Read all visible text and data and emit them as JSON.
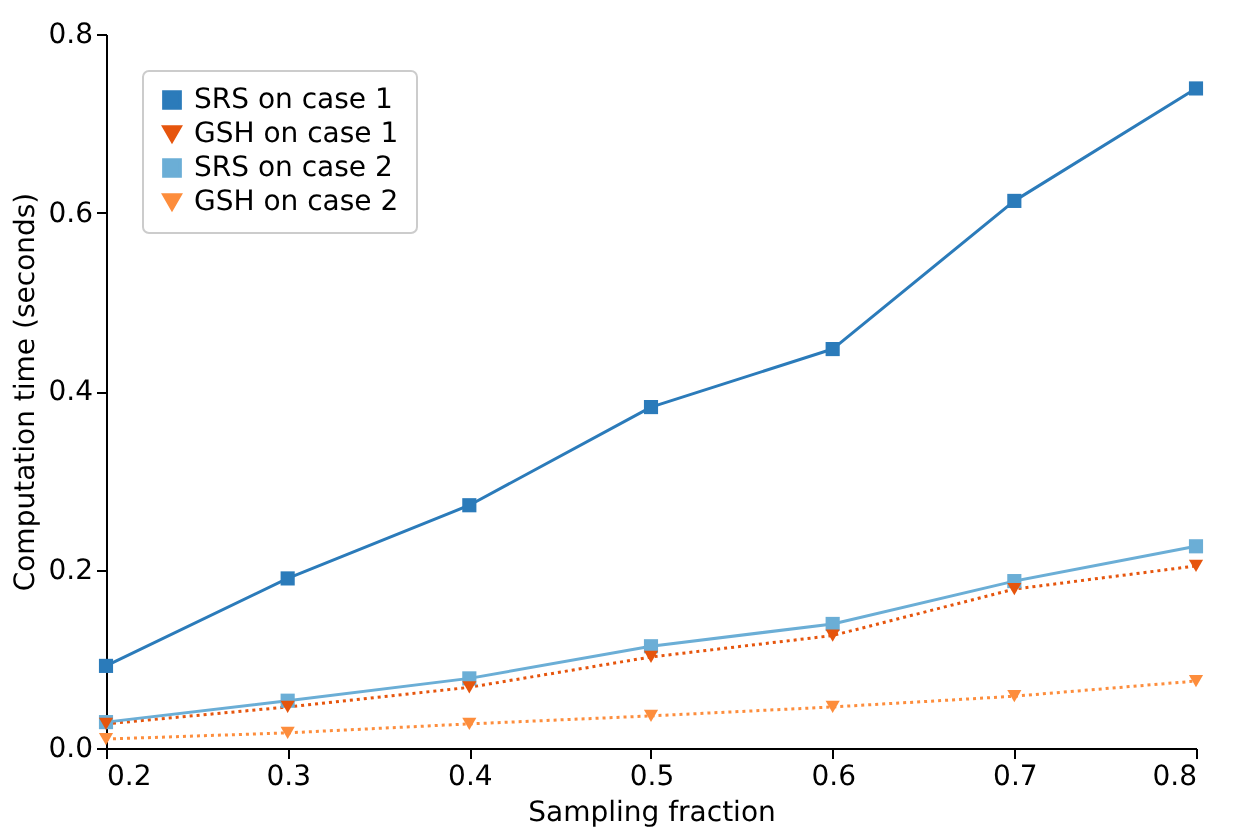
{
  "chart_data": {
    "type": "line",
    "xlabel": "Sampling fraction",
    "ylabel": "Computation time (seconds)",
    "x": [
      0.2,
      0.3,
      0.4,
      0.5,
      0.6,
      0.7,
      0.8
    ],
    "xlim": [
      0.2,
      0.8
    ],
    "xticks": [
      0.2,
      0.3,
      0.4,
      0.5,
      0.6,
      0.7,
      0.8
    ],
    "ylim": [
      0,
      0.8
    ],
    "yticks": [
      {
        "value": 0,
        "label": "0.0"
      },
      0.2,
      0.4,
      0.6,
      0.8
    ],
    "grid": false,
    "legend": "top left",
    "series": [
      {
        "name": "SRS on case 1",
        "color": "#2b7bba",
        "marker": "square",
        "line_style": "solid",
        "values": [
          0.092,
          0.19,
          0.272,
          0.382,
          0.447,
          0.613,
          0.739
        ]
      },
      {
        "name": "GSH on case 1",
        "color": "#e6550d",
        "marker": "triangle",
        "line_style": "dotted",
        "values": [
          0.027,
          0.046,
          0.068,
          0.102,
          0.126,
          0.178,
          0.204
        ]
      },
      {
        "name": "SRS on case 2",
        "color": "#6baed6",
        "marker": "square",
        "line_style": "solid",
        "values": [
          0.029,
          0.053,
          0.078,
          0.114,
          0.139,
          0.187,
          0.226
        ]
      },
      {
        "name": "GSH on case 2",
        "color": "#fd8d3c",
        "marker": "triangle",
        "line_style": "dotted",
        "values": [
          0.01,
          0.017,
          0.027,
          0.036,
          0.046,
          0.058,
          0.075
        ]
      }
    ]
  }
}
